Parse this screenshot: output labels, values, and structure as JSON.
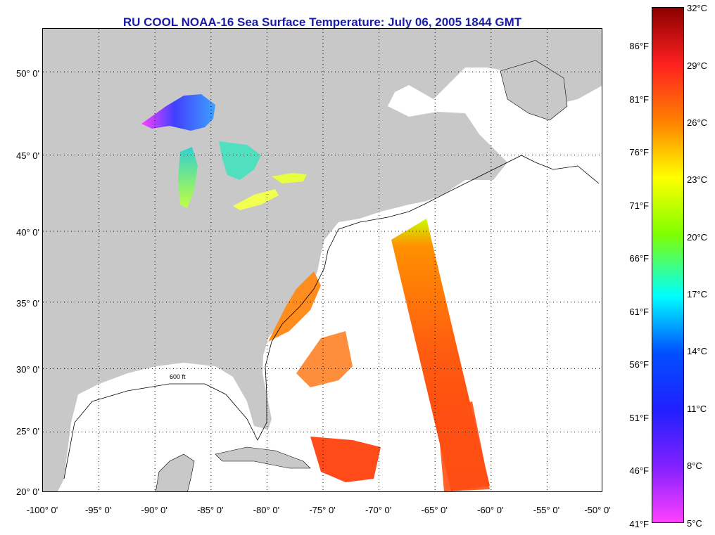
{
  "title": "RU COOL  NOAA-16  Sea Surface Temperature:  July 06, 2005 1844 GMT",
  "map": {
    "lon_range": [
      -100,
      -50
    ],
    "lat_range": [
      20,
      52.4
    ],
    "gridlines": "dotted",
    "land_color": "#c8c8c8",
    "no_data_color": "#ffffff",
    "contour_label": "600 ft",
    "lat_labels": [
      "20° 0'",
      "25° 0'",
      "30° 0'",
      "35° 0'",
      "40° 0'",
      "45° 0'",
      "50° 0'"
    ],
    "lon_labels": [
      "-100° 0'",
      "-95° 0'",
      "-90° 0'",
      "-85° 0'",
      "-80° 0'",
      "-75° 0'",
      "-70° 0'",
      "-65° 0'",
      "-60° 0'",
      "-55° 0'",
      "-50° 0'"
    ]
  },
  "colorbar": {
    "celsius_labels": [
      "32°C",
      "29°C",
      "26°C",
      "23°C",
      "20°C",
      "17°C",
      "14°C",
      "11°C",
      "8°C",
      "5°C"
    ],
    "fahrenheit_labels": [
      "86°F",
      "81°F",
      "76°F",
      "71°F",
      "66°F",
      "61°F",
      "56°F",
      "51°F",
      "46°F",
      "41°F"
    ],
    "colors": [
      "#8b0000",
      "#ff2020",
      "#ff8000",
      "#ffff00",
      "#80ff00",
      "#00ffff",
      "#0050ff",
      "#2020ff",
      "#8020ff",
      "#ff40ff"
    ]
  }
}
